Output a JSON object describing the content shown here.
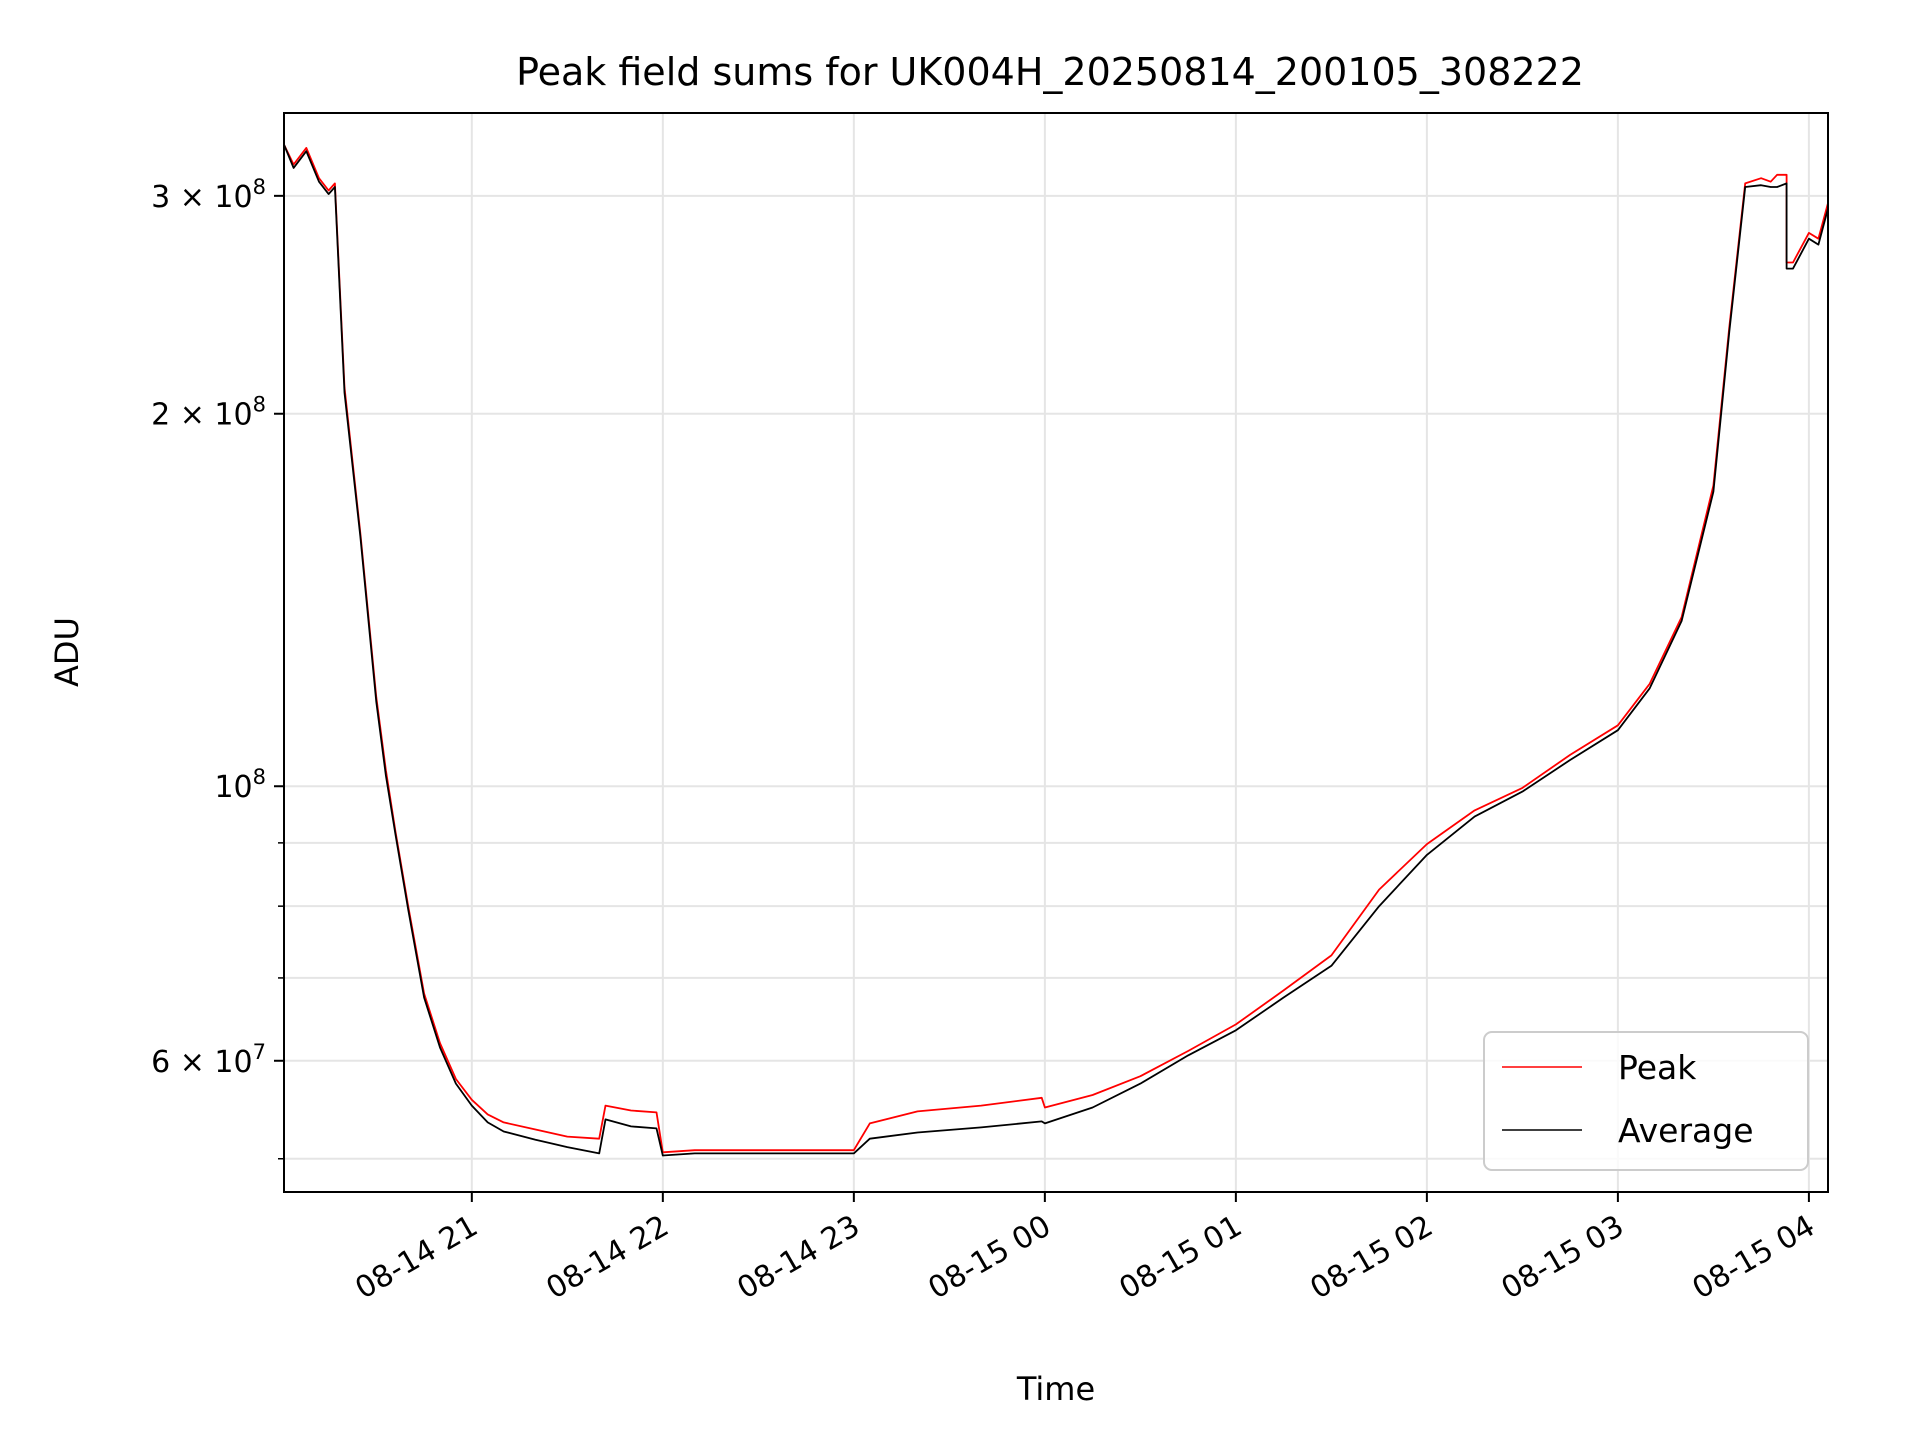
{
  "chart_data": {
    "type": "line",
    "title": "Peak field sums for UK004H_20250814_200105_308222",
    "xlabel": "Time",
    "ylabel": "ADU",
    "y_scale": "log",
    "ylim": [
      47000000,
      350000000
    ],
    "xlim": [
      "2025-08-14 20:01",
      "2025-08-15 04:06"
    ],
    "grid": true,
    "legend_position": "lower-right",
    "x_ticks": [
      {
        "value": "2025-08-14 21:00",
        "label": "08-14 21"
      },
      {
        "value": "2025-08-14 22:00",
        "label": "08-14 22"
      },
      {
        "value": "2025-08-14 23:00",
        "label": "08-14 23"
      },
      {
        "value": "2025-08-15 00:00",
        "label": "08-15 00"
      },
      {
        "value": "2025-08-15 01:00",
        "label": "08-15 01"
      },
      {
        "value": "2025-08-15 02:00",
        "label": "08-15 02"
      },
      {
        "value": "2025-08-15 03:00",
        "label": "08-15 03"
      },
      {
        "value": "2025-08-15 04:00",
        "label": "08-15 04"
      }
    ],
    "y_major_ticks": [
      {
        "value": 60000000,
        "mantissa": "6 × 10",
        "exponent": "7"
      },
      {
        "value": 100000000,
        "mantissa": "10",
        "exponent": "8"
      },
      {
        "value": 200000000,
        "mantissa": "2 × 10",
        "exponent": "8"
      },
      {
        "value": 300000000,
        "mantissa": "3 × 10",
        "exponent": "8"
      }
    ],
    "y_minor_ticks": [
      50000000,
      70000000,
      80000000,
      90000000
    ],
    "series": [
      {
        "name": "Peak",
        "color": "#ff0000",
        "x": [
          "2025-08-14 20:01",
          "2025-08-14 20:04",
          "2025-08-14 20:08",
          "2025-08-14 20:12",
          "2025-08-14 20:15",
          "2025-08-14 20:17",
          "2025-08-14 20:20",
          "2025-08-14 20:25",
          "2025-08-14 20:30",
          "2025-08-14 20:33",
          "2025-08-14 20:36",
          "2025-08-14 20:40",
          "2025-08-14 20:45",
          "2025-08-14 20:50",
          "2025-08-14 20:55",
          "2025-08-14 21:00",
          "2025-08-14 21:05",
          "2025-08-14 21:10",
          "2025-08-14 21:20",
          "2025-08-14 21:30",
          "2025-08-14 21:40",
          "2025-08-14 21:42",
          "2025-08-14 21:50",
          "2025-08-14 21:58",
          "2025-08-14 22:00",
          "2025-08-14 22:10",
          "2025-08-14 22:20",
          "2025-08-14 22:30",
          "2025-08-14 22:40",
          "2025-08-14 22:50",
          "2025-08-14 23:00",
          "2025-08-14 23:05",
          "2025-08-14 23:20",
          "2025-08-14 23:40",
          "2025-08-14 23:59",
          "2025-08-15 00:00",
          "2025-08-15 00:15",
          "2025-08-15 00:30",
          "2025-08-15 00:45",
          "2025-08-15 01:00",
          "2025-08-15 01:15",
          "2025-08-15 01:30",
          "2025-08-15 01:45",
          "2025-08-15 02:00",
          "2025-08-15 02:15",
          "2025-08-15 02:30",
          "2025-08-15 02:45",
          "2025-08-15 03:00",
          "2025-08-15 03:10",
          "2025-08-15 03:20",
          "2025-08-15 03:30",
          "2025-08-15 03:35",
          "2025-08-15 03:40",
          "2025-08-15 03:45",
          "2025-08-15 03:48",
          "2025-08-15 03:50",
          "2025-08-15 03:53",
          "2025-08-15 03:53",
          "2025-08-15 03:55",
          "2025-08-15 04:00",
          "2025-08-15 04:03",
          "2025-08-15 04:06"
        ],
        "values": [
          330000000,
          318000000,
          328000000,
          310000000,
          303000000,
          307000000,
          210000000,
          160000000,
          118000000,
          103000000,
          92000000,
          80000000,
          68000000,
          62000000,
          58000000,
          55800000,
          54300000,
          53500000,
          52800000,
          52100000,
          51900000,
          55200000,
          54700000,
          54500000,
          50600000,
          50800000,
          50800000,
          50800000,
          50800000,
          50800000,
          50800000,
          53400000,
          54600000,
          55200000,
          56000000,
          55000000,
          56300000,
          58300000,
          61100000,
          64200000,
          68400000,
          73000000,
          82500000,
          89800000,
          95600000,
          99700000,
          106000000,
          112000000,
          121000000,
          137000000,
          175000000,
          235000000,
          307000000,
          310000000,
          308000000,
          312000000,
          312000000,
          265000000,
          265000000,
          280000000,
          277000000,
          296000000
        ]
      },
      {
        "name": "Average",
        "color": "#000000",
        "x": [
          "2025-08-14 20:01",
          "2025-08-14 20:04",
          "2025-08-14 20:08",
          "2025-08-14 20:12",
          "2025-08-14 20:15",
          "2025-08-14 20:17",
          "2025-08-14 20:20",
          "2025-08-14 20:25",
          "2025-08-14 20:30",
          "2025-08-14 20:33",
          "2025-08-14 20:36",
          "2025-08-14 20:40",
          "2025-08-14 20:45",
          "2025-08-14 20:50",
          "2025-08-14 20:55",
          "2025-08-14 21:00",
          "2025-08-14 21:05",
          "2025-08-14 21:10",
          "2025-08-14 21:20",
          "2025-08-14 21:30",
          "2025-08-14 21:40",
          "2025-08-14 21:42",
          "2025-08-14 21:50",
          "2025-08-14 21:58",
          "2025-08-14 22:00",
          "2025-08-14 22:10",
          "2025-08-14 22:20",
          "2025-08-14 22:30",
          "2025-08-14 22:40",
          "2025-08-14 22:50",
          "2025-08-14 23:00",
          "2025-08-14 23:05",
          "2025-08-14 23:20",
          "2025-08-14 23:40",
          "2025-08-14 23:59",
          "2025-08-15 00:00",
          "2025-08-15 00:15",
          "2025-08-15 00:30",
          "2025-08-15 00:45",
          "2025-08-15 01:00",
          "2025-08-15 01:15",
          "2025-08-15 01:30",
          "2025-08-15 01:45",
          "2025-08-15 02:00",
          "2025-08-15 02:15",
          "2025-08-15 02:30",
          "2025-08-15 02:45",
          "2025-08-15 03:00",
          "2025-08-15 03:10",
          "2025-08-15 03:20",
          "2025-08-15 03:30",
          "2025-08-15 03:35",
          "2025-08-15 03:40",
          "2025-08-15 03:45",
          "2025-08-15 03:48",
          "2025-08-15 03:50",
          "2025-08-15 03:53",
          "2025-08-15 03:53",
          "2025-08-15 03:55",
          "2025-08-15 04:00",
          "2025-08-15 04:03",
          "2025-08-15 04:06"
        ],
        "values": [
          330000000,
          316000000,
          326000000,
          308000000,
          301000000,
          305000000,
          208000000,
          159000000,
          117000000,
          102000000,
          91500000,
          79500000,
          67500000,
          61500000,
          57500000,
          55200000,
          53500000,
          52600000,
          51800000,
          51100000,
          50500000,
          53800000,
          53100000,
          52900000,
          50300000,
          50500000,
          50500000,
          50500000,
          50500000,
          50500000,
          50500000,
          51900000,
          52500000,
          53000000,
          53600000,
          53400000,
          55000000,
          57500000,
          60600000,
          63500000,
          67500000,
          71600000,
          80000000,
          88000000,
          94500000,
          99000000,
          105000000,
          111000000,
          120000000,
          136000000,
          173000000,
          233000000,
          305000000,
          306000000,
          305000000,
          305000000,
          307000000,
          262000000,
          262000000,
          277000000,
          274000000,
          293000000
        ]
      }
    ]
  }
}
